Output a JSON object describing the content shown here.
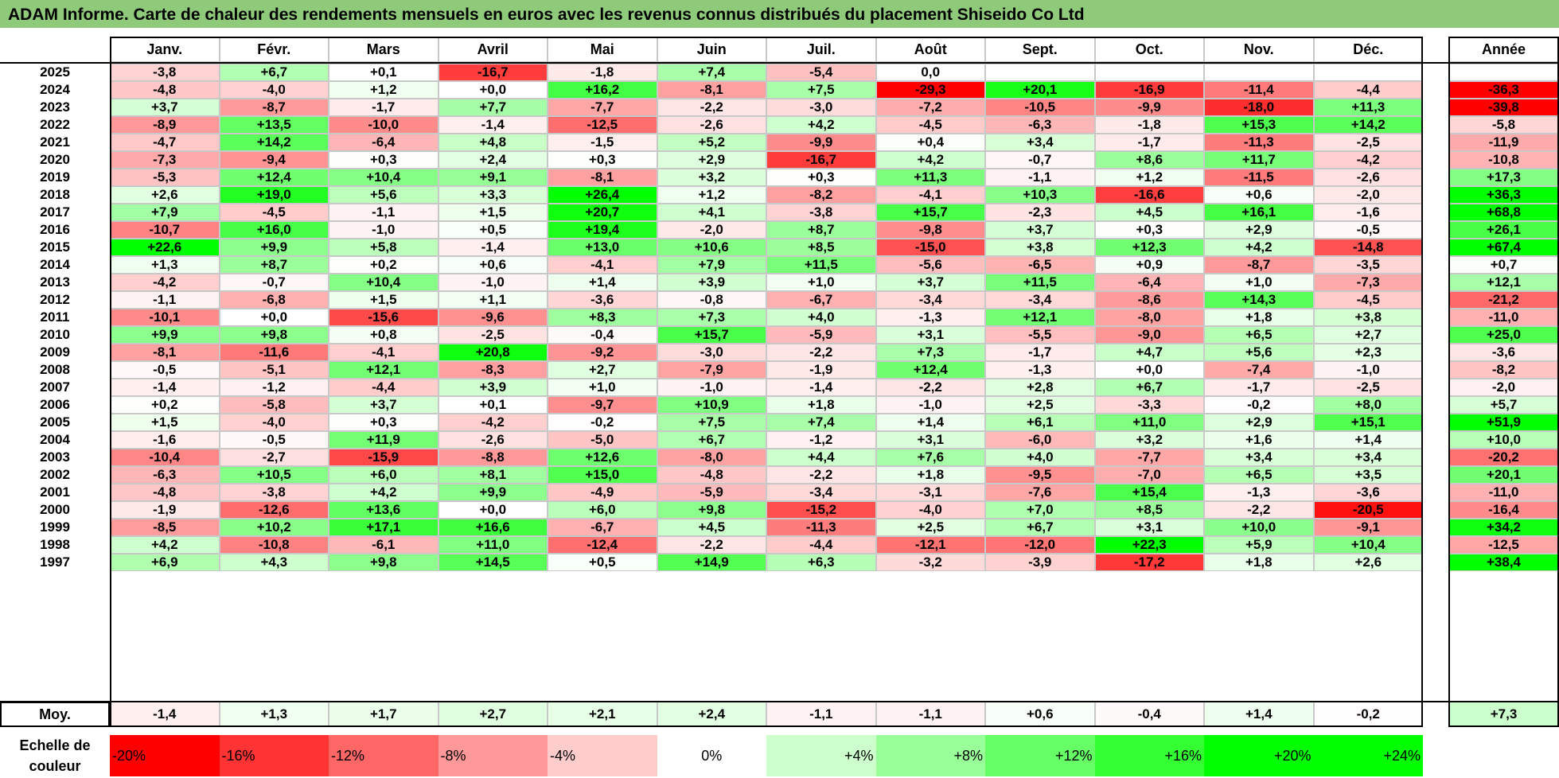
{
  "title": "ADAM Informe. Carte de chaleur des rendements mensuels en euros avec les revenus connus distribués du placement Shiseido Co Ltd",
  "annual_header": "Année",
  "avg_label": "Moy.",
  "scale_label": "Echelle de couleur",
  "scale": [
    "-20%",
    "-16%",
    "-12%",
    "-8%",
    "-4%",
    "0%",
    "+4%",
    "+8%",
    "+12%",
    "+16%",
    "+20%",
    "+24%"
  ],
  "colors": {
    "negative_max": "#ff0000",
    "neutral": "#ffffff",
    "positive_max": "#00ff00",
    "title_bg": "#8fca7a"
  },
  "chart_data": {
    "type": "heatmap",
    "title": "ADAM Informe. Carte de chaleur des rendements mensuels en euros avec les revenus connus distribués du placement Shiseido Co Ltd",
    "months": [
      "Janv.",
      "Févr.",
      "Mars",
      "Avril",
      "Mai",
      "Juin",
      "Juil.",
      "Août",
      "Sept.",
      "Oct.",
      "Nov.",
      "Déc."
    ],
    "rows": [
      {
        "year": "2025",
        "values": [
          "-3,8",
          "+6,7",
          "+0,1",
          "-16,7",
          "-1,8",
          "+7,4",
          "-5,4",
          "0,0",
          "",
          "",
          "",
          ""
        ],
        "annual": ""
      },
      {
        "year": "2024",
        "values": [
          "-4,8",
          "-4,0",
          "+1,2",
          "+0,0",
          "+16,2",
          "-8,1",
          "+7,5",
          "-29,3",
          "+20,1",
          "-16,9",
          "-11,4",
          "-4,4"
        ],
        "annual": "-36,3"
      },
      {
        "year": "2023",
        "values": [
          "+3,7",
          "-8,7",
          "-1,7",
          "+7,7",
          "-7,7",
          "-2,2",
          "-3,0",
          "-7,2",
          "-10,5",
          "-9,9",
          "-18,0",
          "+11,3"
        ],
        "annual": "-39,8"
      },
      {
        "year": "2022",
        "values": [
          "-8,9",
          "+13,5",
          "-10,0",
          "-1,4",
          "-12,5",
          "-2,6",
          "+4,2",
          "-4,5",
          "-6,3",
          "-1,8",
          "+15,3",
          "+14,2"
        ],
        "annual": "-5,8"
      },
      {
        "year": "2021",
        "values": [
          "-4,7",
          "+14,2",
          "-6,4",
          "+4,8",
          "-1,5",
          "+5,2",
          "-9,9",
          "+0,4",
          "+3,4",
          "-1,7",
          "-11,3",
          "-2,5"
        ],
        "annual": "-11,9"
      },
      {
        "year": "2020",
        "values": [
          "-7,3",
          "-9,4",
          "+0,3",
          "+2,4",
          "+0,3",
          "+2,9",
          "-16,7",
          "+4,2",
          "-0,7",
          "+8,6",
          "+11,7",
          "-4,2"
        ],
        "annual": "-10,8"
      },
      {
        "year": "2019",
        "values": [
          "-5,3",
          "+12,4",
          "+10,4",
          "+9,1",
          "-8,1",
          "+3,2",
          "+0,3",
          "+11,3",
          "-1,1",
          "+1,2",
          "-11,5",
          "-2,6"
        ],
        "annual": "+17,3"
      },
      {
        "year": "2018",
        "values": [
          "+2,6",
          "+19,0",
          "+5,6",
          "+3,3",
          "+26,4",
          "+1,2",
          "-8,2",
          "-4,1",
          "+10,3",
          "-16,6",
          "+0,6",
          "-2,0"
        ],
        "annual": "+36,3"
      },
      {
        "year": "2017",
        "values": [
          "+7,9",
          "-4,5",
          "-1,1",
          "+1,5",
          "+20,7",
          "+4,1",
          "-3,8",
          "+15,7",
          "-2,3",
          "+4,5",
          "+16,1",
          "-1,6"
        ],
        "annual": "+68,8"
      },
      {
        "year": "2016",
        "values": [
          "-10,7",
          "+16,0",
          "-1,0",
          "+0,5",
          "+19,4",
          "-2,0",
          "+8,7",
          "-9,8",
          "+3,7",
          "+0,3",
          "+2,9",
          "-0,5"
        ],
        "annual": "+26,1"
      },
      {
        "year": "2015",
        "values": [
          "+22,6",
          "+9,9",
          "+5,8",
          "-1,4",
          "+13,0",
          "+10,6",
          "+8,5",
          "-15,0",
          "+3,8",
          "+12,3",
          "+4,2",
          "-14,8"
        ],
        "annual": "+67,4"
      },
      {
        "year": "2014",
        "values": [
          "+1,3",
          "+8,7",
          "+0,2",
          "+0,6",
          "-4,1",
          "+7,9",
          "+11,5",
          "-5,6",
          "-6,5",
          "+0,9",
          "-8,7",
          "-3,5"
        ],
        "annual": "+0,7"
      },
      {
        "year": "2013",
        "values": [
          "-4,2",
          "-0,7",
          "+10,4",
          "-1,0",
          "+1,4",
          "+3,9",
          "+1,0",
          "+3,7",
          "+11,5",
          "-6,4",
          "+1,0",
          "-7,3"
        ],
        "annual": "+12,1"
      },
      {
        "year": "2012",
        "values": [
          "-1,1",
          "-6,8",
          "+1,5",
          "+1,1",
          "-3,6",
          "-0,8",
          "-6,7",
          "-3,4",
          "-3,4",
          "-8,6",
          "+14,3",
          "-4,5"
        ],
        "annual": "-21,2"
      },
      {
        "year": "2011",
        "values": [
          "-10,1",
          "+0,0",
          "-15,6",
          "-9,6",
          "+8,3",
          "+7,3",
          "+4,0",
          "-1,3",
          "+12,1",
          "-8,0",
          "+1,8",
          "+3,8"
        ],
        "annual": "-11,0"
      },
      {
        "year": "2010",
        "values": [
          "+9,9",
          "+9,8",
          "+0,8",
          "-2,5",
          "-0,4",
          "+15,7",
          "-5,9",
          "+3,1",
          "-5,5",
          "-9,0",
          "+6,5",
          "+2,7"
        ],
        "annual": "+25,0"
      },
      {
        "year": "2009",
        "values": [
          "-8,1",
          "-11,6",
          "-4,1",
          "+20,8",
          "-9,2",
          "-3,0",
          "-2,2",
          "+7,3",
          "-1,7",
          "+4,7",
          "+5,6",
          "+2,3"
        ],
        "annual": "-3,6"
      },
      {
        "year": "2008",
        "values": [
          "-0,5",
          "-5,1",
          "+12,1",
          "-8,3",
          "+2,7",
          "-7,9",
          "-1,9",
          "+12,4",
          "-1,3",
          "+0,0",
          "-7,4",
          "-1,0"
        ],
        "annual": "-8,2"
      },
      {
        "year": "2007",
        "values": [
          "-1,4",
          "-1,2",
          "-4,4",
          "+3,9",
          "+1,0",
          "-1,0",
          "-1,4",
          "-2,2",
          "+2,8",
          "+6,7",
          "-1,7",
          "-2,5"
        ],
        "annual": "-2,0"
      },
      {
        "year": "2006",
        "values": [
          "+0,2",
          "-5,8",
          "+3,7",
          "+0,1",
          "-9,7",
          "+10,9",
          "+1,8",
          "-1,0",
          "+2,5",
          "-3,3",
          "-0,2",
          "+8,0"
        ],
        "annual": "+5,7"
      },
      {
        "year": "2005",
        "values": [
          "+1,5",
          "-4,0",
          "+0,3",
          "-4,2",
          "-0,2",
          "+7,5",
          "+7,4",
          "+1,4",
          "+6,1",
          "+11,0",
          "+2,9",
          "+15,1"
        ],
        "annual": "+51,9"
      },
      {
        "year": "2004",
        "values": [
          "-1,6",
          "-0,5",
          "+11,9",
          "-2,6",
          "-5,0",
          "+6,7",
          "-1,2",
          "+3,1",
          "-6,0",
          "+3,2",
          "+1,6",
          "+1,4"
        ],
        "annual": "+10,0"
      },
      {
        "year": "2003",
        "values": [
          "-10,4",
          "-2,7",
          "-15,9",
          "-8,8",
          "+12,6",
          "-8,0",
          "+4,4",
          "+7,6",
          "+4,0",
          "-7,7",
          "+3,4",
          "+3,4"
        ],
        "annual": "-20,2"
      },
      {
        "year": "2002",
        "values": [
          "-6,3",
          "+10,5",
          "+6,0",
          "+8,1",
          "+15,0",
          "-4,8",
          "-2,2",
          "+1,8",
          "-9,5",
          "-7,0",
          "+6,5",
          "+3,5"
        ],
        "annual": "+20,1"
      },
      {
        "year": "2001",
        "values": [
          "-4,8",
          "-3,8",
          "+4,2",
          "+9,9",
          "-4,9",
          "-5,9",
          "-3,4",
          "-3,1",
          "-7,6",
          "+15,4",
          "-1,3",
          "-3,6"
        ],
        "annual": "-11,0"
      },
      {
        "year": "2000",
        "values": [
          "-1,9",
          "-12,6",
          "+13,6",
          "+0,0",
          "+6,0",
          "+9,8",
          "-15,2",
          "-4,0",
          "+7,0",
          "+8,5",
          "-2,2",
          "-20,5"
        ],
        "annual": "-16,4"
      },
      {
        "year": "1999",
        "values": [
          "-8,5",
          "+10,2",
          "+17,1",
          "+16,6",
          "-6,7",
          "+4,5",
          "-11,3",
          "+2,5",
          "+6,7",
          "+3,1",
          "+10,0",
          "-9,1"
        ],
        "annual": "+34,2"
      },
      {
        "year": "1998",
        "values": [
          "+4,2",
          "-10,8",
          "-6,1",
          "+11,0",
          "-12,4",
          "-2,2",
          "-4,4",
          "-12,1",
          "-12,0",
          "+22,3",
          "+5,9",
          "+10,4"
        ],
        "annual": "-12,5"
      },
      {
        "year": "1997",
        "values": [
          "+6,9",
          "+4,3",
          "+9,8",
          "+14,5",
          "+0,5",
          "+14,9",
          "+6,3",
          "-3,2",
          "-3,9",
          "-17,2",
          "+1,8",
          "+2,6"
        ],
        "annual": "+38,4"
      }
    ],
    "average": {
      "values": [
        "-1,4",
        "+1,3",
        "+1,7",
        "+2,7",
        "+2,1",
        "+2,4",
        "-1,1",
        "-1,1",
        "+0,6",
        "-0,4",
        "+1,4",
        "-0,2"
      ],
      "annual": "+7,3"
    }
  }
}
